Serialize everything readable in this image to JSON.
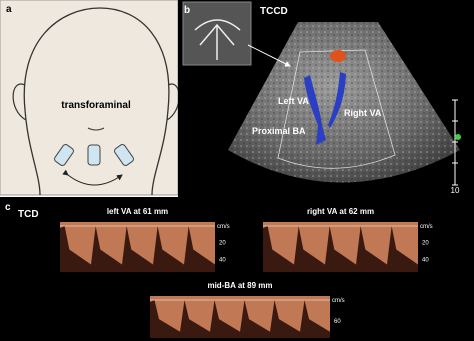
{
  "panel_a": {
    "label": "a",
    "annotation": "transforaminal"
  },
  "panel_b": {
    "label": "b",
    "title": "TCCD",
    "vessels": [
      "Left VA",
      "Right VA",
      "Proximal BA"
    ],
    "scale_label": "10"
  },
  "panel_c": {
    "label": "c",
    "title": "TCD",
    "spectra": [
      {
        "caption": "left VA at 61 mm",
        "unit": "cm/s",
        "ticks": [
          "20",
          "40"
        ]
      },
      {
        "caption": "right VA at 62 mm",
        "unit": "cm/s",
        "ticks": [
          "20",
          "40"
        ]
      },
      {
        "caption": "mid-BA at 89 mm",
        "unit": "cm/s",
        "ticks": [
          "60"
        ]
      }
    ]
  }
}
